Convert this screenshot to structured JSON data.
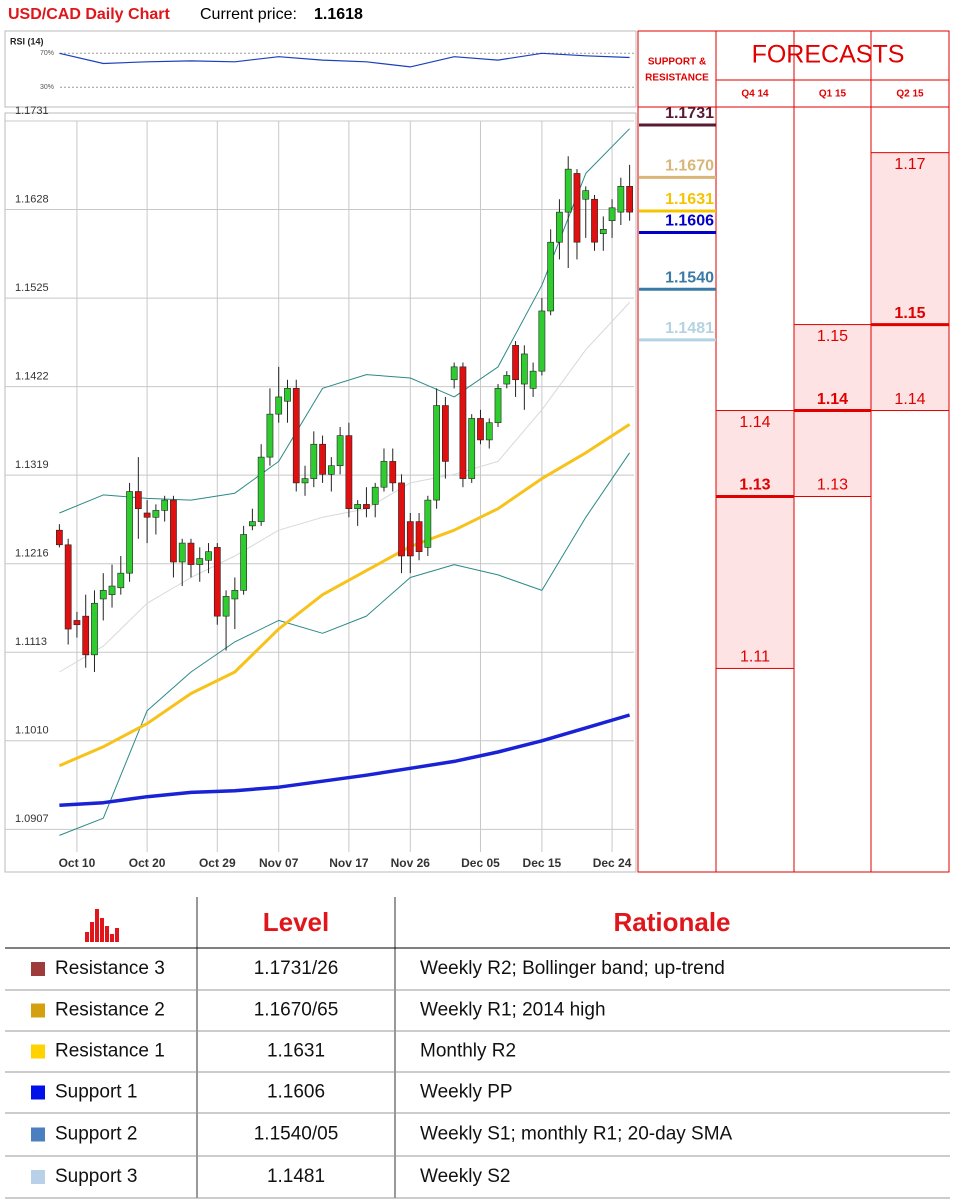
{
  "chart_data": {
    "type": "candlestick",
    "title": "USD/CAD Daily Chart",
    "current_price_label": "Current price:",
    "current_price": 1.1618,
    "ylim": [
      1.0869,
      1.1731
    ],
    "yticks": [
      1.1731,
      1.1628,
      1.1525,
      1.1422,
      1.1319,
      1.1216,
      1.1113,
      {
        "value": 1.101,
        "label": "1.1010"
      },
      1.0907
    ],
    "xlim": [
      -0.5,
      65.5
    ],
    "xticks": [
      {
        "value": 2,
        "label": "Oct 10"
      },
      {
        "value": 10,
        "label": "Oct 20"
      },
      {
        "value": 18,
        "label": "Oct 29"
      },
      {
        "value": 25,
        "label": "Nov 07"
      },
      {
        "value": 33,
        "label": "Nov 17"
      },
      {
        "value": 40,
        "label": "Nov 26"
      },
      {
        "value": 48,
        "label": "Dec 05"
      },
      {
        "value": 55,
        "label": "Dec 15"
      },
      {
        "value": 63,
        "label": "Dec 24"
      }
    ],
    "grid": true,
    "colors": {
      "up": "#2ecc2e",
      "down": "#e01010"
    },
    "ohlc": {
      "open": [
        1.1255,
        1.1238,
        1.115,
        1.1155,
        1.111,
        1.1175,
        1.118,
        1.1188,
        1.1205,
        1.13,
        1.1275,
        1.127,
        1.1278,
        1.129,
        1.1218,
        1.124,
        1.1215,
        1.122,
        1.1235,
        1.1155,
        1.1175,
        1.1185,
        1.126,
        1.1265,
        1.134,
        1.139,
        1.1405,
        1.142,
        1.131,
        1.1315,
        1.1355,
        1.132,
        1.133,
        1.1365,
        1.128,
        1.1285,
        1.1285,
        1.1305,
        1.1335,
        1.131,
        1.1265,
        1.1265,
        1.1235,
        1.129,
        1.14,
        1.143,
        1.1445,
        1.1315,
        1.1385,
        1.136,
        1.138,
        1.1425,
        1.147,
        1.1425,
        1.142,
        1.144,
        1.151,
        1.159,
        1.1625,
        1.167,
        1.164,
        1.164,
        1.16,
        1.1615,
        1.1625,
        1.1655
      ],
      "high": [
        1.1262,
        1.1245,
        1.116,
        1.118,
        1.1185,
        1.1205,
        1.1215,
        1.1225,
        1.131,
        1.134,
        1.129,
        1.1285,
        1.1295,
        1.1295,
        1.1245,
        1.1245,
        1.1235,
        1.124,
        1.124,
        1.1185,
        1.12,
        1.126,
        1.128,
        1.1355,
        1.142,
        1.1445,
        1.143,
        1.143,
        1.133,
        1.137,
        1.1365,
        1.134,
        1.1375,
        1.138,
        1.129,
        1.1305,
        1.131,
        1.135,
        1.135,
        1.132,
        1.1275,
        1.1275,
        1.1295,
        1.142,
        1.141,
        1.145,
        1.145,
        1.139,
        1.1395,
        1.1385,
        1.1425,
        1.144,
        1.1475,
        1.147,
        1.145,
        1.1525,
        1.1605,
        1.164,
        1.169,
        1.1675,
        1.1655,
        1.1645,
        1.162,
        1.164,
        1.1665,
        1.168
      ],
      "low": [
        1.1235,
        1.1122,
        1.113,
        1.1095,
        1.109,
        1.115,
        1.1165,
        1.118,
        1.1195,
        1.1245,
        1.124,
        1.125,
        1.1265,
        1.12,
        1.119,
        1.12,
        1.1195,
        1.1205,
        1.1145,
        1.1115,
        1.114,
        1.118,
        1.1255,
        1.126,
        1.133,
        1.138,
        1.138,
        1.13,
        1.1295,
        1.1305,
        1.131,
        1.13,
        1.132,
        1.127,
        1.126,
        1.127,
        1.127,
        1.13,
        1.13,
        1.1205,
        1.1205,
        1.122,
        1.1225,
        1.128,
        1.1315,
        1.142,
        1.1305,
        1.131,
        1.1355,
        1.135,
        1.1375,
        1.142,
        1.141,
        1.1395,
        1.141,
        1.1435,
        1.1505,
        1.157,
        1.156,
        1.157,
        1.1595,
        1.158,
        1.158,
        1.1595,
        1.161,
        1.1615
      ],
      "close": [
        1.1238,
        1.114,
        1.1145,
        1.111,
        1.117,
        1.1185,
        1.119,
        1.1205,
        1.13,
        1.128,
        1.127,
        1.1278,
        1.129,
        1.1218,
        1.124,
        1.1215,
        1.1222,
        1.123,
        1.1155,
        1.1178,
        1.1185,
        1.125,
        1.1265,
        1.134,
        1.139,
        1.141,
        1.142,
        1.131,
        1.1315,
        1.1355,
        1.132,
        1.133,
        1.1365,
        1.128,
        1.1285,
        1.128,
        1.1305,
        1.1335,
        1.131,
        1.1225,
        1.1225,
        1.123,
        1.129,
        1.14,
        1.1335,
        1.1445,
        1.1315,
        1.1385,
        1.136,
        1.138,
        1.142,
        1.1435,
        1.143,
        1.146,
        1.144,
        1.151,
        1.159,
        1.1625,
        1.1675,
        1.159,
        1.165,
        1.159,
        1.1605,
        1.163,
        1.1655,
        1.1625
      ]
    },
    "overlays": [
      {
        "color": "#1a22d6",
        "width": 3.5,
        "x": [
          0,
          5,
          10,
          15,
          20,
          25,
          30,
          35,
          40,
          45,
          50,
          55,
          60,
          65
        ],
        "values": [
          1.0935,
          1.0938,
          1.0945,
          1.095,
          1.0952,
          1.0956,
          1.0963,
          1.097,
          1.0978,
          1.0986,
          1.0997,
          1.101,
          1.1025,
          1.104
        ]
      },
      {
        "color": "#f7c21a",
        "width": 3,
        "x": [
          0,
          5,
          10,
          15,
          20,
          25,
          30,
          35,
          40,
          45,
          50,
          55,
          60,
          65
        ],
        "values": [
          1.0981,
          1.1003,
          1.103,
          1.1065,
          1.109,
          1.114,
          1.118,
          1.1208,
          1.1236,
          1.1255,
          1.128,
          1.1315,
          1.1345,
          1.1378
        ]
      },
      {
        "color": "#2a8a86",
        "width": 1,
        "x": [
          0,
          5,
          10,
          15,
          20,
          25,
          30,
          35,
          40,
          45,
          50,
          55,
          60,
          65
        ],
        "values": [
          1.1275,
          1.1296,
          1.1292,
          1.129,
          1.1298,
          1.1335,
          1.142,
          1.1436,
          1.1432,
          1.141,
          1.1445,
          1.154,
          1.167,
          1.1722
        ]
      },
      {
        "color": "#2a8a86",
        "width": 1,
        "x": [
          0,
          5,
          10,
          15,
          20,
          25,
          30,
          35,
          40,
          45,
          50,
          55,
          60,
          65
        ],
        "values": [
          1.09,
          1.092,
          1.1045,
          1.109,
          1.1125,
          1.115,
          1.1135,
          1.1155,
          1.12,
          1.1215,
          1.1203,
          1.1185,
          1.127,
          1.1345
        ]
      },
      {
        "color": "#d8d8d8",
        "width": 1,
        "x": [
          0,
          5,
          10,
          15,
          20,
          25,
          30,
          35,
          40,
          45,
          50,
          55,
          60,
          65
        ],
        "values": [
          1.109,
          1.112,
          1.117,
          1.12,
          1.1225,
          1.1255,
          1.127,
          1.128,
          1.131,
          1.132,
          1.1335,
          1.1395,
          1.1465,
          1.152
        ]
      }
    ],
    "rsi": {
      "title": "RSI (14)",
      "ylim": [
        8,
        95
      ],
      "yticks": [
        {
          "value": 70,
          "label": "70%"
        },
        {
          "value": 30,
          "label": "30%"
        }
      ],
      "color": "#1a3fbf",
      "x": [
        0,
        5,
        10,
        15,
        20,
        25,
        30,
        35,
        40,
        45,
        50,
        55,
        60,
        65
      ],
      "values": [
        70,
        58,
        60,
        61,
        60,
        66,
        62,
        60,
        54,
        66,
        62,
        70,
        67,
        65
      ]
    }
  },
  "support_resistance": {
    "title_lines": [
      "SUPPORT &",
      "RESISTANCE"
    ],
    "values": [
      1.1731,
      1.167,
      1.1631,
      1.1606,
      1.154,
      1.1481
    ],
    "value_labels": [
      "1.1731",
      "1.1670",
      "1.1631",
      "1.1606",
      "1.1540",
      "1.1481"
    ],
    "colors": [
      "#5a1a33",
      "#d9b577",
      "#f5c400",
      "#0000c8",
      "#3b7aa6",
      "#b4d3e0"
    ]
  },
  "forecasts": {
    "title": "FORECASTS",
    "color": "#e00000",
    "fill": "#fde3e3",
    "columns": [
      {
        "name": "Q4 14",
        "max": 1.14,
        "median": 1.13,
        "min": 1.11
      },
      {
        "name": "Q1 15",
        "max": 1.15,
        "median": 1.14,
        "min": 1.13
      },
      {
        "name": "Q2 15",
        "max": 1.17,
        "median": 1.15,
        "min": 1.14
      }
    ]
  },
  "table": {
    "header": [
      "Level",
      "Rationale"
    ],
    "rows": [
      {
        "color": "#9e3c3c",
        "name": "Resistance 3",
        "level": "1.1731/26",
        "rationale": "Weekly R2; Bollinger band; up-trend"
      },
      {
        "color": "#d4a010",
        "name": "Resistance 2",
        "level": "1.1670/65",
        "rationale": "Weekly R1; 2014 high"
      },
      {
        "color": "#ffd200",
        "name": "Resistance 1",
        "level": "1.1631",
        "rationale": "Monthly R2"
      },
      {
        "color": "#0010e8",
        "name": "Support 1",
        "level": "1.1606",
        "rationale": "Weekly PP"
      },
      {
        "color": "#4a80c0",
        "name": "Support 2",
        "level": "1.1540/05",
        "rationale": "Weekly S1; monthly R1; 20-day SMA"
      },
      {
        "color": "#b8d0e8",
        "name": "Support 3",
        "level": "1.1481",
        "rationale": "Weekly S2"
      }
    ]
  }
}
